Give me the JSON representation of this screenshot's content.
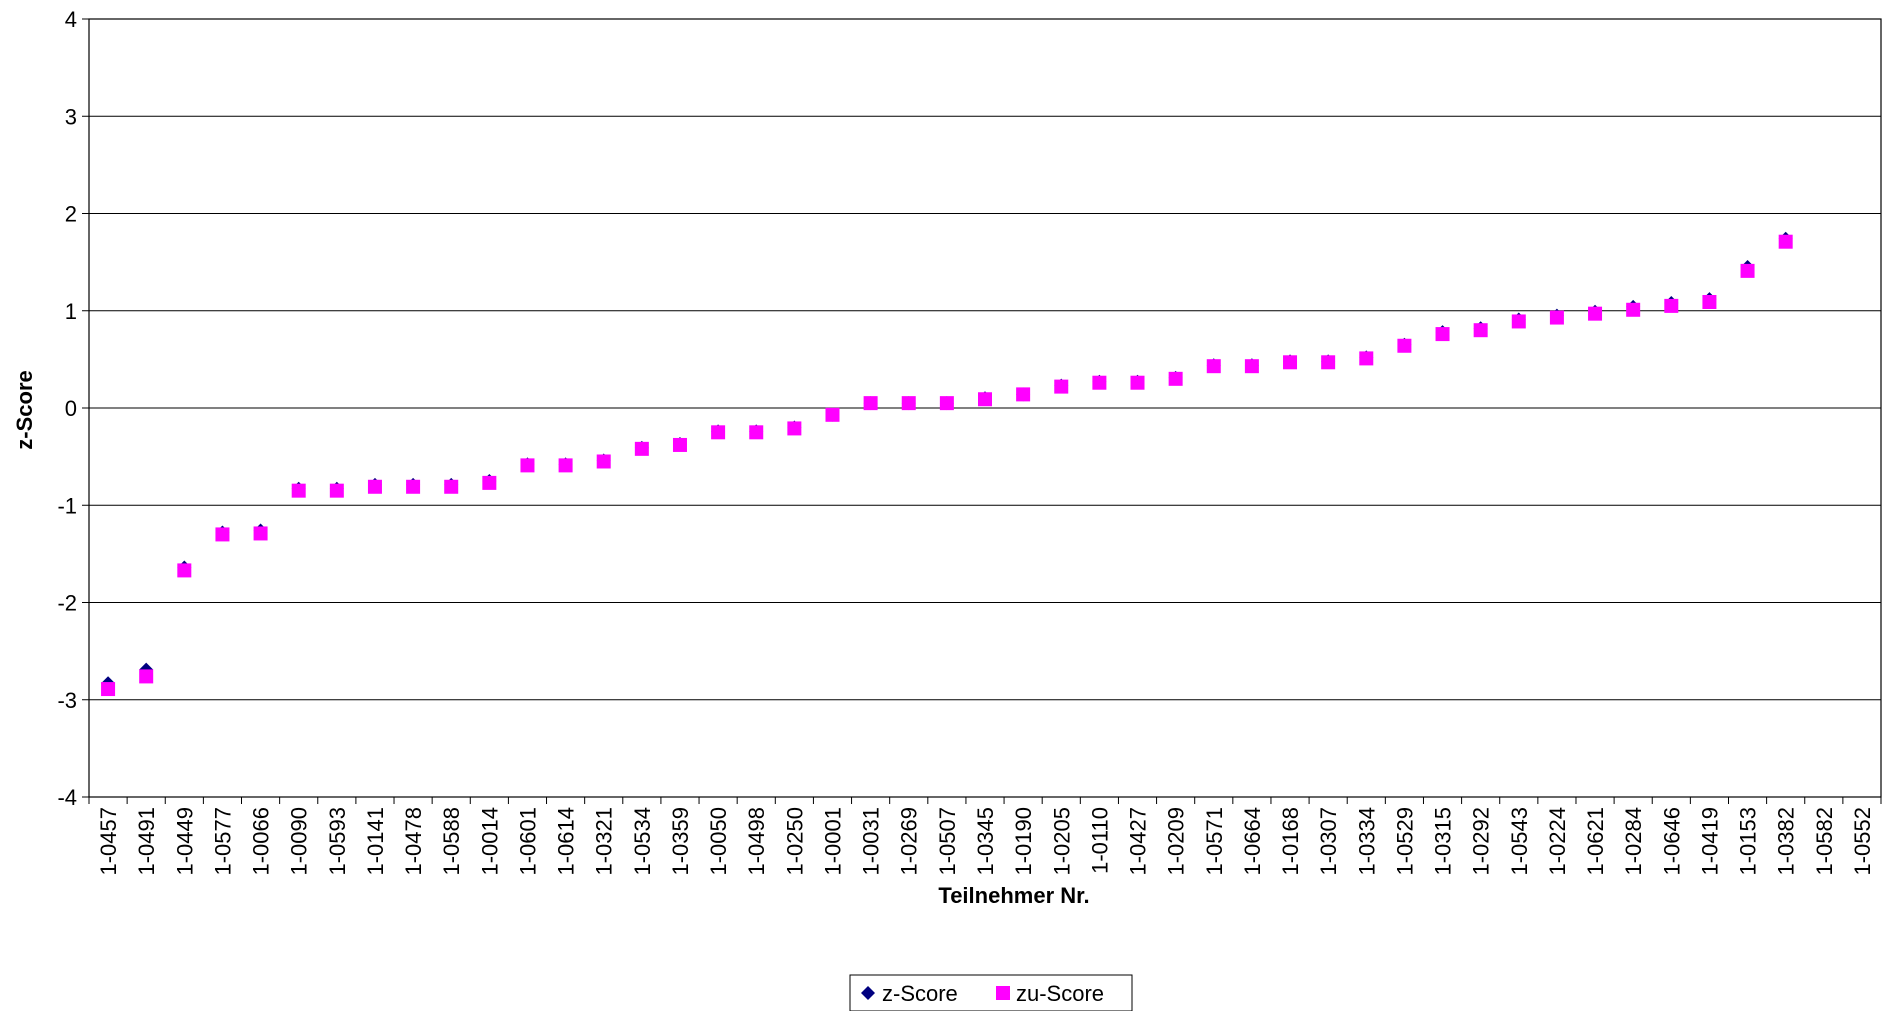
{
  "chart_data": {
    "type": "scatter",
    "title": "",
    "xlabel": "Teilnehmer Nr.",
    "ylabel": "z-Score",
    "ylim": [
      -4,
      4
    ],
    "yticks": [
      -4,
      -3,
      -2,
      -1,
      0,
      1,
      2,
      3,
      4
    ],
    "grid": true,
    "legend_position": "bottom-center",
    "categories": [
      "1-0457",
      "1-0491",
      "1-0449",
      "1-0577",
      "1-0066",
      "1-0090",
      "1-0593",
      "1-0141",
      "1-0478",
      "1-0588",
      "1-0014",
      "1-0601",
      "1-0614",
      "1-0321",
      "1-0534",
      "1-0359",
      "1-0050",
      "1-0498",
      "1-0250",
      "1-0001",
      "1-0031",
      "1-0269",
      "1-0507",
      "1-0345",
      "1-0190",
      "1-0205",
      "1-0110",
      "1-0427",
      "1-0209",
      "1-0571",
      "1-0664",
      "1-0168",
      "1-0307",
      "1-0334",
      "1-0529",
      "1-0315",
      "1-0292",
      "1-0543",
      "1-0224",
      "1-0621",
      "1-0284",
      "1-0646",
      "1-0419",
      "1-0153",
      "1-0382",
      "1-0582",
      "1-0552"
    ],
    "series": [
      {
        "name": "z-Score",
        "marker": "diamond",
        "color": "#000080",
        "values": [
          -2.83,
          -2.69,
          -1.64,
          -1.28,
          -1.26,
          -0.83,
          -0.83,
          -0.79,
          -0.79,
          -0.79,
          -0.75,
          -0.58,
          -0.58,
          -0.54,
          -0.41,
          -0.37,
          -0.24,
          -0.24,
          -0.2,
          -0.07,
          0.05,
          0.05,
          0.05,
          0.1,
          0.14,
          0.23,
          0.27,
          0.27,
          0.31,
          0.44,
          0.44,
          0.48,
          0.48,
          0.52,
          0.65,
          0.78,
          0.82,
          0.91,
          0.95,
          0.99,
          1.04,
          1.08,
          1.12,
          1.45,
          1.74,
          null,
          null
        ]
      },
      {
        "name": "zu-Score",
        "marker": "square",
        "color": "#ff00ff",
        "values": [
          -2.89,
          -2.76,
          -1.67,
          -1.3,
          -1.29,
          -0.85,
          -0.85,
          -0.81,
          -0.81,
          -0.81,
          -0.77,
          -0.59,
          -0.59,
          -0.55,
          -0.42,
          -0.38,
          -0.25,
          -0.25,
          -0.21,
          -0.07,
          0.05,
          0.05,
          0.05,
          0.09,
          0.14,
          0.22,
          0.26,
          0.26,
          0.3,
          0.43,
          0.43,
          0.47,
          0.47,
          0.51,
          0.64,
          0.76,
          0.8,
          0.89,
          0.93,
          0.97,
          1.01,
          1.05,
          1.09,
          1.41,
          1.71,
          null,
          null
        ]
      }
    ]
  }
}
